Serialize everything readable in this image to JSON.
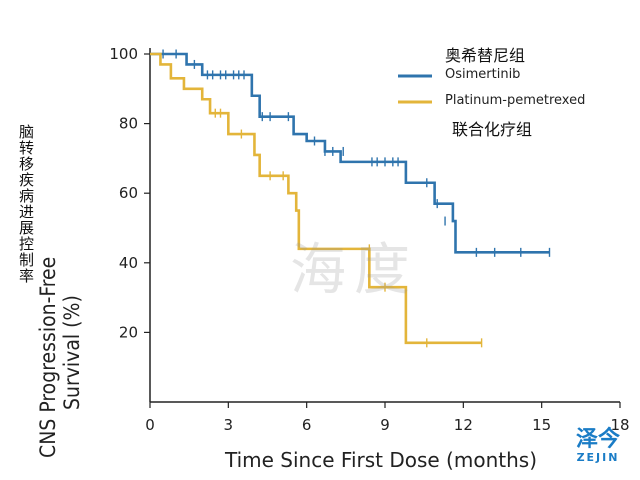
{
  "chart_data": {
    "type": "line",
    "title": "",
    "xlabel": "Time Since First Dose (months)",
    "ylabel_en_line1": "CNS Progression-Free",
    "ylabel_en_line2": "Survival (%)",
    "ylabel_cn": "脑转移疾病进展控制率",
    "xlim": [
      0,
      18
    ],
    "ylim": [
      0,
      100
    ],
    "xticks": [
      0,
      3,
      6,
      9,
      12,
      15,
      18
    ],
    "yticks": [
      20,
      40,
      60,
      80,
      100
    ],
    "xtick_labels": [
      "0",
      "3",
      "6",
      "9",
      "12",
      "15",
      "18"
    ],
    "ytick_labels": [
      "20",
      "40",
      "60",
      "80",
      "100"
    ],
    "legend_position": "top-right",
    "legend_cn_top": "奥希替尼组",
    "legend_cn_bottom": "联合化疗组",
    "series": [
      {
        "name": "Osimertinib",
        "color": "#2f74ad",
        "steps": [
          [
            0,
            100
          ],
          [
            1.4,
            97
          ],
          [
            2,
            94
          ],
          [
            2.6,
            94
          ],
          [
            3.9,
            88
          ],
          [
            4.2,
            82
          ],
          [
            5.5,
            77
          ],
          [
            6,
            75
          ],
          [
            6.7,
            72
          ],
          [
            7.3,
            69
          ],
          [
            9.8,
            63
          ],
          [
            10.9,
            57
          ],
          [
            11.6,
            52
          ],
          [
            11.7,
            43
          ],
          [
            15.3,
            43
          ]
        ],
        "censored": [
          [
            0.5,
            100
          ],
          [
            1,
            100
          ],
          [
            1.7,
            97
          ],
          [
            2.2,
            94
          ],
          [
            2.4,
            94
          ],
          [
            2.7,
            94
          ],
          [
            2.9,
            94
          ],
          [
            3.2,
            94
          ],
          [
            3.4,
            94
          ],
          [
            3.6,
            94
          ],
          [
            4.3,
            82
          ],
          [
            4.6,
            82
          ],
          [
            5.3,
            82
          ],
          [
            6.3,
            75
          ],
          [
            6.7,
            72
          ],
          [
            7,
            72
          ],
          [
            7.4,
            72
          ],
          [
            8.5,
            69
          ],
          [
            8.7,
            69
          ],
          [
            9,
            69
          ],
          [
            9.3,
            69
          ],
          [
            9.5,
            69
          ],
          [
            10.6,
            63
          ],
          [
            11,
            57
          ],
          [
            11.3,
            52
          ],
          [
            12.5,
            43
          ],
          [
            13.2,
            43
          ],
          [
            14.2,
            43
          ],
          [
            15.3,
            43
          ]
        ]
      },
      {
        "name": "Platinum-pemetrexed",
        "color": "#e3b53a",
        "steps": [
          [
            0,
            100
          ],
          [
            0.4,
            97
          ],
          [
            0.8,
            93
          ],
          [
            1.3,
            90
          ],
          [
            2,
            87
          ],
          [
            2.3,
            83
          ],
          [
            3,
            77
          ],
          [
            4,
            71
          ],
          [
            4.2,
            65
          ],
          [
            5.3,
            60
          ],
          [
            5.6,
            55
          ],
          [
            5.7,
            44
          ],
          [
            8.4,
            33
          ],
          [
            9.8,
            17
          ],
          [
            12.7,
            17
          ]
        ],
        "censored": [
          [
            2.5,
            83
          ],
          [
            2.7,
            83
          ],
          [
            3.5,
            77
          ],
          [
            4.6,
            65
          ],
          [
            5.1,
            65
          ],
          [
            8.4,
            44
          ],
          [
            9,
            33
          ],
          [
            10.6,
            17
          ],
          [
            12.7,
            17
          ]
        ]
      }
    ]
  },
  "watermark": {
    "big": "泽今",
    "small": "ZEJIN",
    "ghost": "海度"
  }
}
